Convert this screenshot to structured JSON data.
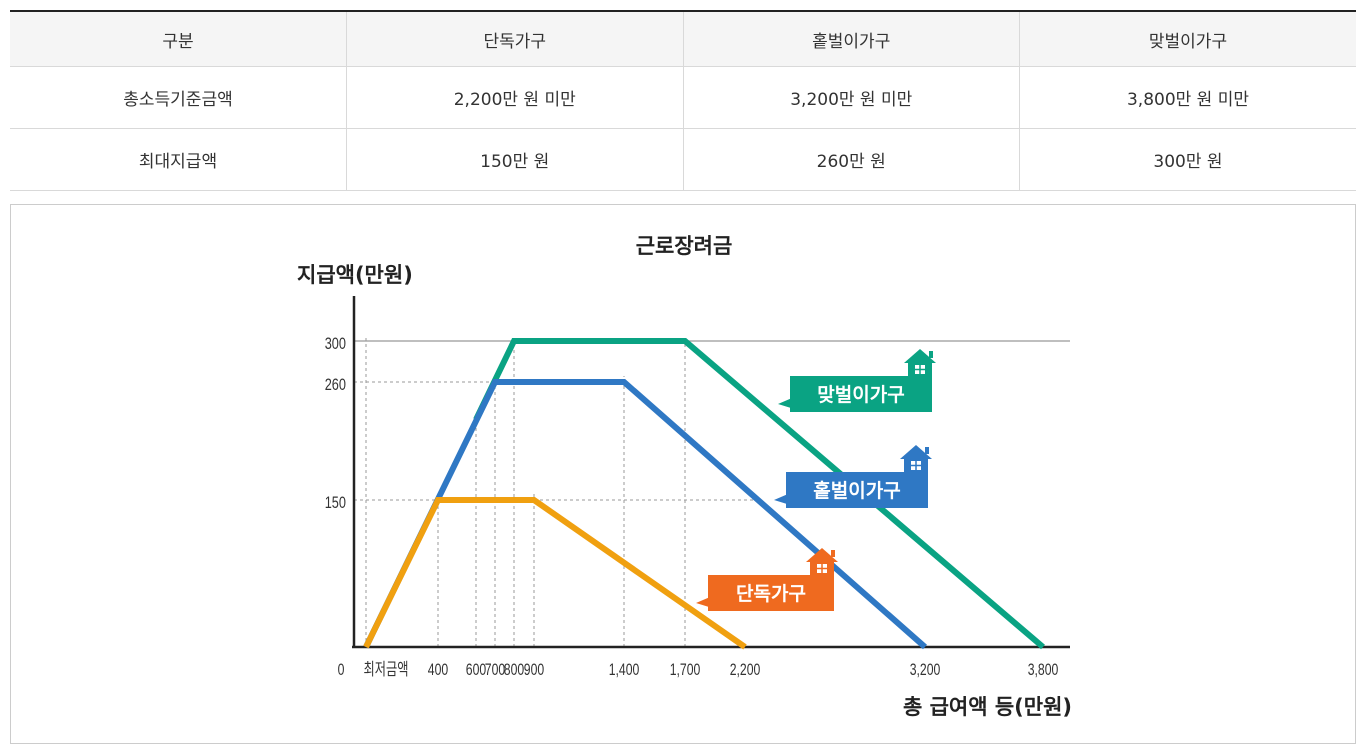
{
  "table": {
    "headers": [
      "구분",
      "단독가구",
      "홑벌이가구",
      "맞벌이가구"
    ],
    "rows": [
      [
        "총소득기준금액",
        "2,200만 원 미만",
        "3,200만 원 미만",
        "3,800만 원 미만"
      ],
      [
        "최대지급액",
        "150만 원",
        "260만 원",
        "300만 원"
      ]
    ]
  },
  "chart_data": {
    "type": "line",
    "title": "근로장려금",
    "ylabel": "지급액(만원)",
    "xlabel": "총 급여액 등(만원)",
    "x_tick_labels": [
      "0",
      "최저금액",
      "400",
      "600",
      "700",
      "800",
      "900",
      "1,400",
      "1,700",
      "2,200",
      "3,200",
      "3,800"
    ],
    "y_tick_labels": [
      "300",
      "260",
      "150"
    ],
    "xlim": [
      0,
      3800
    ],
    "ylim": [
      0,
      300
    ],
    "series": [
      {
        "name": "맞벌이가구",
        "color": "#0aa383",
        "points": [
          [
            600,
            225
          ],
          [
            800,
            300
          ],
          [
            1700,
            300
          ],
          [
            3800,
            0
          ]
        ]
      },
      {
        "name": "홑벌이가구",
        "color": "#2f78c4",
        "points": [
          [
            50,
            0
          ],
          [
            700,
            260
          ],
          [
            1400,
            260
          ],
          [
            3200,
            0
          ]
        ]
      },
      {
        "name": "단독가구",
        "color": "#f0a010",
        "points": [
          [
            50,
            0
          ],
          [
            400,
            150
          ],
          [
            900,
            150
          ],
          [
            2200,
            0
          ]
        ]
      }
    ],
    "label_colors": {
      "맞벌이가구": "#0aa383",
      "홑벌이가구": "#2f78c4",
      "단독가구": "#ef6a1f"
    }
  }
}
